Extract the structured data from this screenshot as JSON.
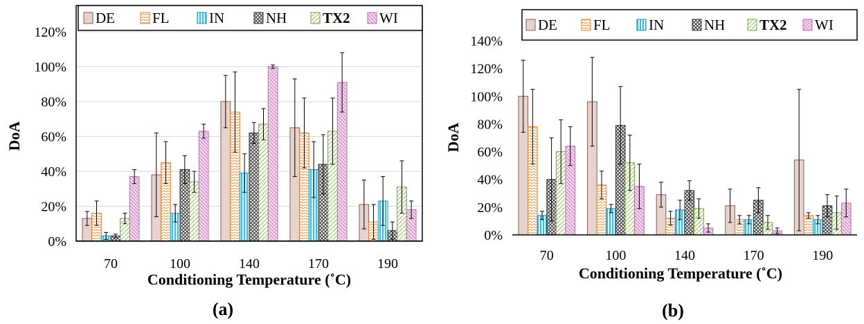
{
  "colors": {
    "DE": "#e7d3cd",
    "FL": "#f2a25a",
    "IN": "#3bbbe6",
    "NH": "#6a6a6a",
    "TX2": "#9ccc64",
    "WI": "#e8a3da",
    "error_bar": "#000000",
    "grid": "#d9d9d9"
  },
  "chart_data": [
    {
      "type": "bar",
      "panel_label": "(a)",
      "xlabel": "Conditioning Temperature (˚C)",
      "ylabel": "DoA",
      "ylim": [
        0,
        1.2
      ],
      "yticks": [
        0,
        0.2,
        0.4,
        0.6,
        0.8,
        1.0,
        1.2
      ],
      "ytick_labels": [
        "0%",
        "20%",
        "40%",
        "60%",
        "80%",
        "100%",
        "120%"
      ],
      "categories": [
        "70",
        "100",
        "140",
        "170",
        "190"
      ],
      "legend_position": "top",
      "grid": true,
      "series": [
        {
          "name": "DE",
          "values": [
            0.13,
            0.38,
            0.8,
            0.65,
            0.21
          ],
          "errors": [
            0.04,
            0.24,
            0.15,
            0.28,
            0.14
          ]
        },
        {
          "name": "FL",
          "values": [
            0.16,
            0.45,
            0.74,
            0.62,
            0.11
          ],
          "errors": [
            0.07,
            0.12,
            0.23,
            0.2,
            0.1
          ]
        },
        {
          "name": "IN",
          "values": [
            0.03,
            0.16,
            0.39,
            0.41,
            0.23
          ],
          "errors": [
            0.02,
            0.05,
            0.11,
            0.16,
            0.14
          ]
        },
        {
          "name": "NH",
          "values": [
            0.03,
            0.41,
            0.62,
            0.44,
            0.06
          ],
          "errors": [
            0.01,
            0.08,
            0.06,
            0.17,
            0.05
          ]
        },
        {
          "name": "TX2",
          "values": [
            0.13,
            0.34,
            0.67,
            0.63,
            0.31
          ],
          "errors": [
            0.03,
            0.06,
            0.09,
            0.19,
            0.15
          ]
        },
        {
          "name": "WI",
          "values": [
            0.37,
            0.63,
            1.0,
            0.91,
            0.18
          ],
          "errors": [
            0.04,
            0.04,
            0.01,
            0.17,
            0.05
          ]
        }
      ]
    },
    {
      "type": "bar",
      "panel_label": "(b)",
      "xlabel": "Conditioning Temperature (˚C)",
      "ylabel": "DoA",
      "ylim": [
        0,
        1.4
      ],
      "yticks": [
        0,
        0.2,
        0.4,
        0.6,
        0.8,
        1.0,
        1.2,
        1.4
      ],
      "ytick_labels": [
        "0%",
        "20%",
        "40%",
        "60%",
        "80%",
        "100%",
        "120%",
        "140%"
      ],
      "categories": [
        "70",
        "100",
        "140",
        "170",
        "190"
      ],
      "legend_position": "top",
      "grid": false,
      "series": [
        {
          "name": "DE",
          "values": [
            1.0,
            0.96,
            0.29,
            0.21,
            0.54
          ],
          "errors": [
            0.26,
            0.32,
            0.09,
            0.12,
            0.51
          ]
        },
        {
          "name": "FL",
          "values": [
            0.78,
            0.36,
            0.12,
            0.11,
            0.14
          ],
          "errors": [
            0.27,
            0.1,
            0.05,
            0.03,
            0.02
          ]
        },
        {
          "name": "IN",
          "values": [
            0.14,
            0.19,
            0.18,
            0.11,
            0.11
          ],
          "errors": [
            0.03,
            0.03,
            0.07,
            0.03,
            0.03
          ]
        },
        {
          "name": "NH",
          "values": [
            0.4,
            0.79,
            0.32,
            0.25,
            0.21
          ],
          "errors": [
            0.3,
            0.28,
            0.07,
            0.09,
            0.08
          ]
        },
        {
          "name": "TX2",
          "values": [
            0.6,
            0.52,
            0.19,
            0.09,
            0.16
          ],
          "errors": [
            0.23,
            0.2,
            0.07,
            0.05,
            0.12
          ]
        },
        {
          "name": "WI",
          "values": [
            0.64,
            0.35,
            0.05,
            0.03,
            0.23
          ],
          "errors": [
            0.14,
            0.16,
            0.03,
            0.02,
            0.1
          ]
        }
      ]
    }
  ]
}
